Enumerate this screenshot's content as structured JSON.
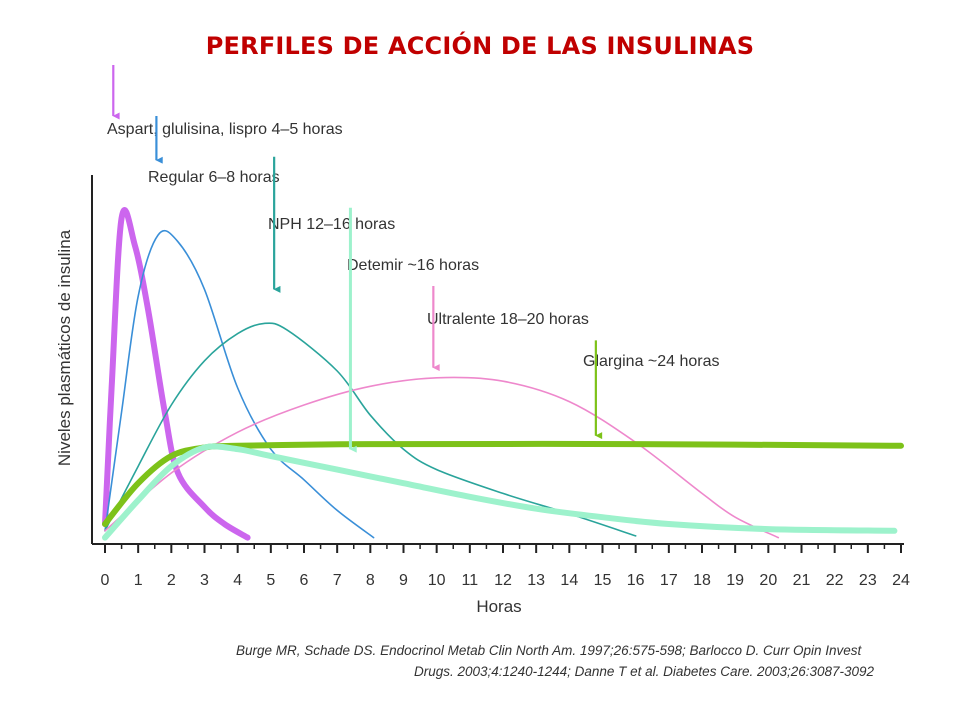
{
  "title": "PERFILES DE ACCIÓN DE LAS INSULINAS",
  "reference": {
    "line1": "Burge MR, Schade DS. Endocrinol Metab Clin North Am. 1997;26:575-598; Barlocco D. Curr Opin Invest",
    "line2": "Drugs. 2003;4:1240-1244; Danne T et al. Diabetes Care. 2003;26:3087-3092"
  },
  "chart_data": {
    "type": "line",
    "title": "PERFILES DE ACCIÓN DE LAS INSULINAS",
    "xlabel": "Horas",
    "ylabel": "Niveles plasmáticos de insulina",
    "xlim": [
      0,
      24
    ],
    "ylim": [
      0,
      100
    ],
    "x_ticks": [
      0,
      1,
      2,
      3,
      4,
      5,
      6,
      7,
      8,
      9,
      10,
      11,
      12,
      13,
      14,
      15,
      16,
      17,
      18,
      19,
      20,
      21,
      22,
      23,
      24
    ],
    "grid": false,
    "legend": "none",
    "series": [
      {
        "id": "aspart",
        "name": "Aspart, glulisina, lispro 4–5 horas",
        "color": "#cc66ee",
        "style": "thick",
        "points": [
          [
            0,
            5
          ],
          [
            0.2,
            45
          ],
          [
            0.5,
            95
          ],
          [
            0.9,
            87
          ],
          [
            1.3,
            68
          ],
          [
            1.8,
            38
          ],
          [
            2.2,
            20
          ],
          [
            3,
            10
          ],
          [
            3.6,
            5
          ],
          [
            4.3,
            1
          ]
        ]
      },
      {
        "id": "regular",
        "name": "Regular 6–8 horas",
        "color": "#3a8fd8",
        "style": "thin",
        "points": [
          [
            0,
            3
          ],
          [
            0.5,
            38
          ],
          [
            1,
            72
          ],
          [
            1.6,
            90
          ],
          [
            2.2,
            88
          ],
          [
            3,
            74
          ],
          [
            4,
            45
          ],
          [
            5,
            27
          ],
          [
            6,
            18
          ],
          [
            7,
            9
          ],
          [
            8.1,
            1
          ]
        ]
      },
      {
        "id": "nph",
        "name": "NPH 12–16 horas",
        "color": "#2aa49b",
        "style": "thin",
        "points": [
          [
            0,
            3
          ],
          [
            1,
            22
          ],
          [
            2,
            40
          ],
          [
            3,
            53
          ],
          [
            4,
            61
          ],
          [
            4.8,
            64
          ],
          [
            5.5,
            62
          ],
          [
            7,
            50
          ],
          [
            8,
            37
          ],
          [
            9,
            27
          ],
          [
            10,
            21
          ],
          [
            12,
            14
          ],
          [
            14,
            8
          ],
          [
            16,
            1.5
          ]
        ]
      },
      {
        "id": "ultralente",
        "name": "Ultralente 18–20 horas",
        "color": "#ee88cc",
        "style": "thin",
        "points": [
          [
            0,
            3
          ],
          [
            2,
            20
          ],
          [
            4,
            32
          ],
          [
            6,
            40
          ],
          [
            8,
            45.5
          ],
          [
            10,
            48
          ],
          [
            12,
            47
          ],
          [
            14,
            41
          ],
          [
            16,
            29
          ],
          [
            18,
            14
          ],
          [
            19,
            7
          ],
          [
            20.3,
            1
          ]
        ]
      },
      {
        "id": "glargina",
        "name": "Glargina ~24 horas",
        "color": "#7dc219",
        "style": "thick",
        "points": [
          [
            0,
            5
          ],
          [
            1,
            17
          ],
          [
            2,
            25
          ],
          [
            3,
            27.5
          ],
          [
            4,
            28
          ],
          [
            8,
            28.5
          ],
          [
            16,
            28.5
          ],
          [
            24,
            28
          ]
        ]
      },
      {
        "id": "detemir",
        "name": "Detemir ~16 horas",
        "color": "#9df2cc",
        "style": "thick",
        "points": [
          [
            0,
            1
          ],
          [
            1,
            12
          ],
          [
            2,
            22
          ],
          [
            3,
            27.5
          ],
          [
            4,
            27
          ],
          [
            5,
            25
          ],
          [
            7,
            21
          ],
          [
            9,
            17
          ],
          [
            11,
            13
          ],
          [
            13,
            9.5
          ],
          [
            15,
            7
          ],
          [
            17,
            5
          ],
          [
            20,
            3.5
          ],
          [
            23.8,
            3
          ]
        ]
      }
    ],
    "annotations": [
      {
        "text": "Aspart, glulisina, lispro 4–5 horas",
        "arrow_x": 0.25,
        "arrow_from_y": 140,
        "arrow_to_y": 125,
        "color": "#cc66ee"
      },
      {
        "text": "Regular 6–8 horas",
        "arrow_x": 1.55,
        "arrow_from_y": 125,
        "arrow_to_y": 112,
        "color": "#3a8fd8"
      },
      {
        "text": "NPH 12–16 horas",
        "arrow_x": 5.1,
        "arrow_from_y": 113,
        "arrow_to_y": 74,
        "color": "#2aa49b"
      },
      {
        "text": "Detemir ~16 horas",
        "arrow_x": 7.4,
        "arrow_from_y": 98,
        "arrow_to_y": 27,
        "color": "#9df2cc"
      },
      {
        "text": "Ultralente 18–20 horas",
        "arrow_x": 9.9,
        "arrow_from_y": 75,
        "arrow_to_y": 51,
        "color": "#ee88cc"
      },
      {
        "text": "Glargina ~24 horas",
        "arrow_x": 14.8,
        "arrow_from_y": 59,
        "arrow_to_y": 31,
        "color": "#7dc219"
      }
    ]
  }
}
